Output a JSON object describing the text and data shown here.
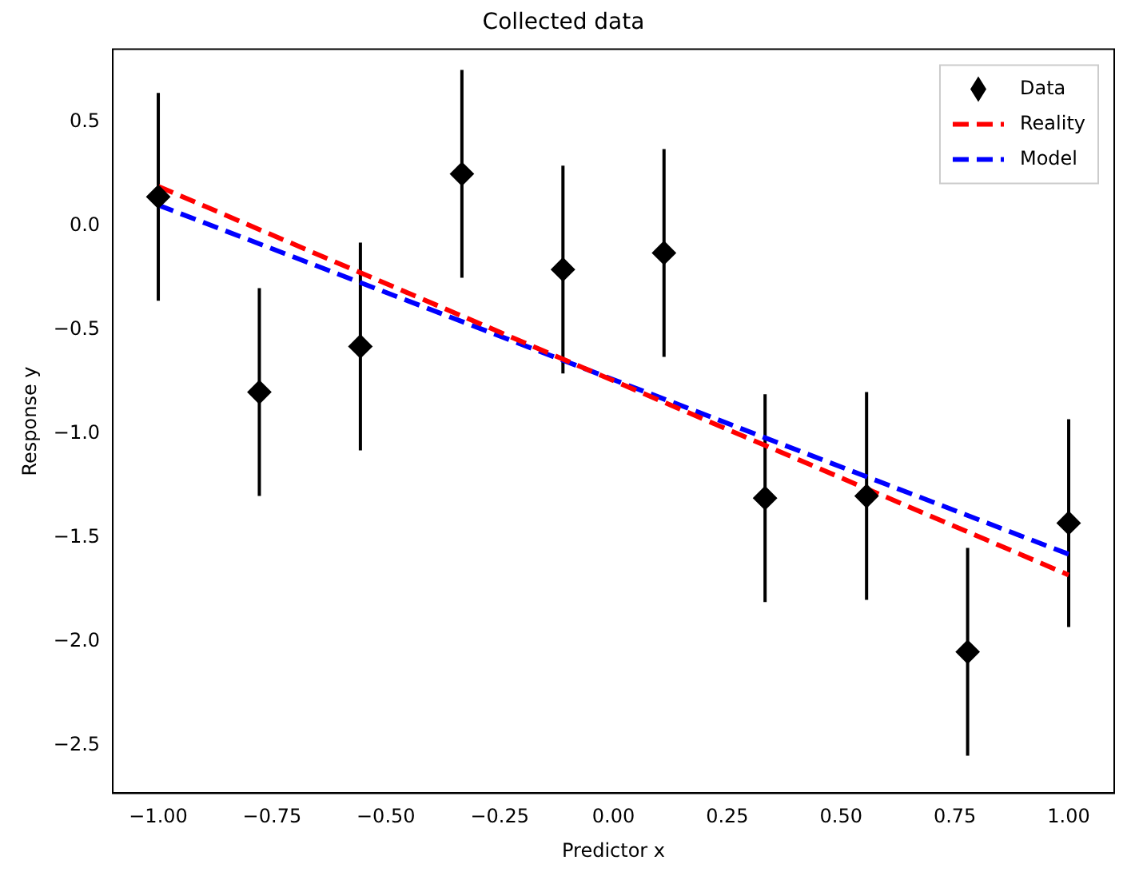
{
  "chart_data": {
    "type": "scatter",
    "title": "Collected data",
    "xlabel": "Predictor x",
    "ylabel": "Response y",
    "xlim": [
      -1.1,
      1.1
    ],
    "ylim": [
      -2.73,
      0.85
    ],
    "xticks": [
      {
        "value": -1,
        "label": "−1.00"
      },
      {
        "value": -0.75,
        "label": "−0.75"
      },
      {
        "value": -0.5,
        "label": "−0.50"
      },
      {
        "value": -0.25,
        "label": "−0.25"
      },
      {
        "value": 0,
        "label": "0.00"
      },
      {
        "value": 0.25,
        "label": "0.25"
      },
      {
        "value": 0.5,
        "label": "0.50"
      },
      {
        "value": 0.75,
        "label": "0.75"
      },
      {
        "value": 1,
        "label": "1.00"
      }
    ],
    "yticks": [
      {
        "value": -2.5,
        "label": "−2.5"
      },
      {
        "value": -2,
        "label": "−2.0"
      },
      {
        "value": -1.5,
        "label": "−1.5"
      },
      {
        "value": -1,
        "label": "−1.0"
      },
      {
        "value": -0.5,
        "label": "−0.5"
      },
      {
        "value": 0,
        "label": "0.0"
      },
      {
        "value": 0.5,
        "label": "0.5"
      }
    ],
    "grid": false,
    "legend": "top right",
    "series": [
      {
        "name": "Data",
        "type": "scatter",
        "color": "#000000",
        "marker": "diamond",
        "x": [
          -1,
          -0.778,
          -0.556,
          -0.333,
          -0.111,
          0.111,
          0.333,
          0.556,
          0.778,
          1
        ],
        "values": [
          0.14,
          -0.8,
          -0.58,
          0.25,
          -0.21,
          -0.13,
          -1.31,
          -1.3,
          -2.05,
          -1.43
        ],
        "errors": [
          0.5,
          0.5,
          0.5,
          0.5,
          0.5,
          0.5,
          0.5,
          0.5,
          0.5,
          0.5
        ]
      },
      {
        "name": "Reality",
        "type": "line",
        "color": "#ff0000",
        "line_style": "dashed",
        "marker": "none",
        "x": [
          -1,
          1
        ],
        "values": [
          0.19,
          -1.68
        ]
      },
      {
        "name": "Model",
        "type": "line",
        "color": "#0000ff",
        "line_style": "dashed",
        "marker": "none",
        "x": [
          -1,
          1
        ],
        "values": [
          0.1,
          -1.58
        ]
      }
    ]
  }
}
